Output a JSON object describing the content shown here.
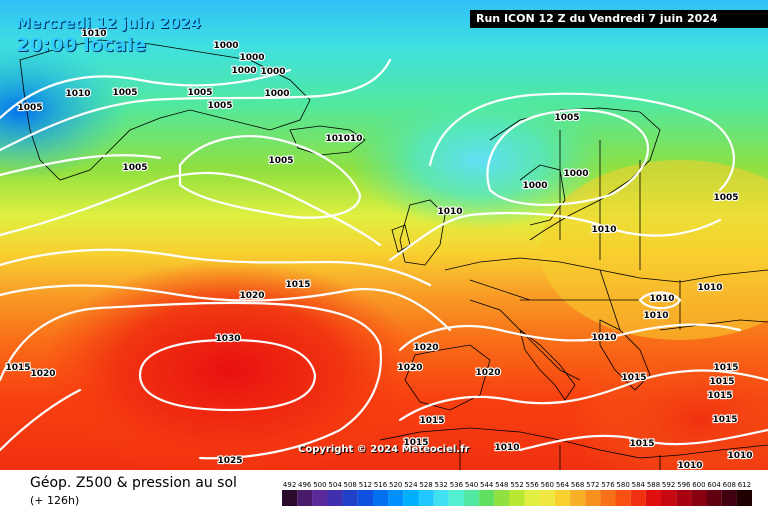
{
  "header": {
    "date": "Mercredi 12 juin 2024",
    "local_time": "20:00 locale",
    "run": "Run ICON 12 Z du Vendredi 7 juin 2024"
  },
  "footer": {
    "parameter": "Géop. Z500 & pression au sol",
    "lead": "(+ 126h)",
    "copyright": "Copyright © 2024 Meteociel.fr"
  },
  "legend": {
    "values": [
      "492",
      "496",
      "500",
      "504",
      "508",
      "512",
      "516",
      "520",
      "524",
      "528",
      "532",
      "536",
      "540",
      "544",
      "548",
      "552",
      "556",
      "560",
      "564",
      "568",
      "572",
      "576",
      "580",
      "584",
      "588",
      "592",
      "596",
      "600",
      "604",
      "608",
      "612"
    ],
    "colors": [
      "#2a0a2a",
      "#4a1a6a",
      "#5a2a9a",
      "#4030b0",
      "#2040c8",
      "#1050e0",
      "#0070f0",
      "#0090ff",
      "#00b0ff",
      "#20c8ff",
      "#40e0f0",
      "#50f0d0",
      "#50e8a0",
      "#60e060",
      "#90e040",
      "#b8e830",
      "#e0f040",
      "#f0e840",
      "#f8d030",
      "#f8b028",
      "#f89020",
      "#f87018",
      "#f85010",
      "#f03010",
      "#e01010",
      "#c80810",
      "#a80010",
      "#880010",
      "#600010",
      "#400010",
      "#200000"
    ]
  },
  "isobar_labels": [
    {
      "text": "1010"
    },
    {
      "text": "1000"
    },
    {
      "text": "1000"
    },
    {
      "text": "1000"
    },
    {
      "text": "1000"
    },
    {
      "text": "1005"
    },
    {
      "text": "1010"
    },
    {
      "text": "1005"
    },
    {
      "text": "1005"
    },
    {
      "text": "1005"
    },
    {
      "text": "1000"
    },
    {
      "text": "1005"
    },
    {
      "text": "1005"
    },
    {
      "text": "1010"
    },
    {
      "text": "1010"
    },
    {
      "text": "1005"
    },
    {
      "text": "1000"
    },
    {
      "text": "1000"
    },
    {
      "text": "1010"
    },
    {
      "text": "1010"
    },
    {
      "text": "1005"
    },
    {
      "text": "1015"
    },
    {
      "text": "1020"
    },
    {
      "text": "1030"
    },
    {
      "text": "1015"
    },
    {
      "text": "1020"
    },
    {
      "text": "1020"
    },
    {
      "text": "1020"
    },
    {
      "text": "1020"
    },
    {
      "text": "1010"
    },
    {
      "text": "1010"
    },
    {
      "text": "1010"
    },
    {
      "text": "1010"
    },
    {
      "text": "1015"
    },
    {
      "text": "1015"
    },
    {
      "text": "1015"
    },
    {
      "text": "1015"
    },
    {
      "text": "1015"
    },
    {
      "text": "1015"
    },
    {
      "text": "1015"
    },
    {
      "text": "1015"
    },
    {
      "text": "1010"
    },
    {
      "text": "1010"
    },
    {
      "text": "1025"
    },
    {
      "text": "1010"
    }
  ]
}
